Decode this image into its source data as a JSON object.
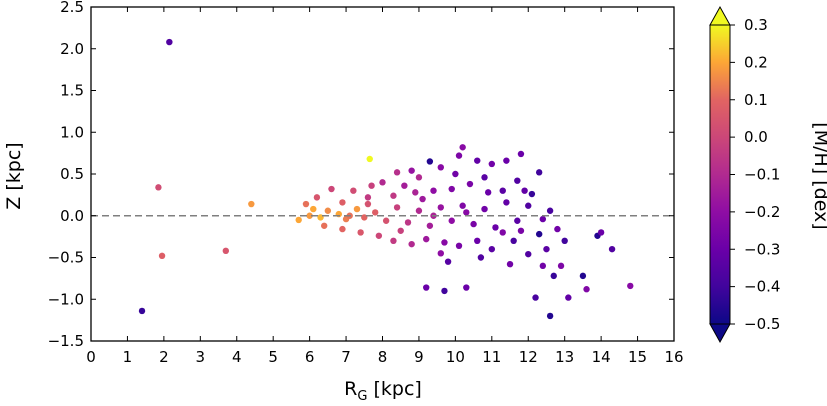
{
  "chart_data": {
    "type": "scatter",
    "xlabel_main": "R",
    "xlabel_sub": "G",
    "xlabel_tail": " [kpc]",
    "ylabel": "Z [kpc]",
    "colorbar_label": "[M/H] [dex]",
    "xlim": [
      0,
      16
    ],
    "ylim": [
      -1.5,
      2.5
    ],
    "clim": [
      -0.5,
      0.3
    ],
    "colormap": "plasma",
    "colorbar_extend": "both",
    "x_ticks": [
      "0",
      "1",
      "2",
      "3",
      "4",
      "5",
      "6",
      "7",
      "8",
      "9",
      "10",
      "11",
      "12",
      "13",
      "14",
      "15",
      "16"
    ],
    "y_ticks": [
      "−1.5",
      "−1.0",
      "−0.5",
      "0.0",
      "0.5",
      "1.0",
      "1.5",
      "2.0",
      "2.5"
    ],
    "c_ticks": [
      "−0.5",
      "−0.4",
      "−0.3",
      "−0.2",
      "−0.1",
      "0.0",
      "0.1",
      "0.2",
      "0.3"
    ],
    "reference_line": {
      "y": 0.0,
      "style": "dashed",
      "color": "#7f7f7f"
    },
    "points": [
      {
        "x": 2.15,
        "y": 2.08,
        "c": -0.36
      },
      {
        "x": 1.85,
        "y": 0.34,
        "c": 0.02
      },
      {
        "x": 1.95,
        "y": -0.48,
        "c": 0.08
      },
      {
        "x": 3.7,
        "y": -0.42,
        "c": 0.05
      },
      {
        "x": 4.4,
        "y": 0.14,
        "c": 0.18
      },
      {
        "x": 1.4,
        "y": -1.14,
        "c": -0.42
      },
      {
        "x": 7.65,
        "y": 0.68,
        "c": 0.3
      },
      {
        "x": 9.3,
        "y": 0.65,
        "c": -0.46
      },
      {
        "x": 10.2,
        "y": 0.82,
        "c": -0.22
      },
      {
        "x": 11.8,
        "y": 0.74,
        "c": -0.3
      },
      {
        "x": 12.6,
        "y": -1.2,
        "c": -0.46
      },
      {
        "x": 14.8,
        "y": -0.84,
        "c": -0.22
      },
      {
        "x": 13.9,
        "y": -0.24,
        "c": -0.46
      },
      {
        "x": 14.3,
        "y": -0.4,
        "c": -0.36
      },
      {
        "x": 9.2,
        "y": -0.86,
        "c": -0.3
      },
      {
        "x": 9.7,
        "y": -0.9,
        "c": -0.4
      },
      {
        "x": 12.2,
        "y": -0.98,
        "c": -0.38
      },
      {
        "x": 13.1,
        "y": -0.98,
        "c": -0.32
      },
      {
        "x": 13.6,
        "y": -0.88,
        "c": -0.24
      },
      {
        "x": 10.3,
        "y": -0.86,
        "c": -0.3
      },
      {
        "x": 12.7,
        "y": -0.72,
        "c": -0.42
      },
      {
        "x": 13.5,
        "y": -0.72,
        "c": -0.46
      },
      {
        "x": 12.4,
        "y": -0.6,
        "c": -0.28
      },
      {
        "x": 9.6,
        "y": -0.45,
        "c": -0.2
      },
      {
        "x": 9.8,
        "y": -0.55,
        "c": -0.35
      },
      {
        "x": 11.5,
        "y": -0.58,
        "c": -0.28
      },
      {
        "x": 12.0,
        "y": -0.46,
        "c": -0.36
      },
      {
        "x": 12.9,
        "y": -0.6,
        "c": -0.25
      },
      {
        "x": 13.0,
        "y": -0.3,
        "c": -0.4
      },
      {
        "x": 14.0,
        "y": -0.2,
        "c": -0.3
      },
      {
        "x": 12.3,
        "y": -0.22,
        "c": -0.46
      },
      {
        "x": 8.4,
        "y": 0.52,
        "c": -0.08
      },
      {
        "x": 8.8,
        "y": 0.54,
        "c": -0.18
      },
      {
        "x": 9.0,
        "y": 0.46,
        "c": -0.1
      },
      {
        "x": 9.6,
        "y": 0.58,
        "c": -0.22
      },
      {
        "x": 10.1,
        "y": 0.72,
        "c": -0.25
      },
      {
        "x": 10.6,
        "y": 0.66,
        "c": -0.32
      },
      {
        "x": 11.0,
        "y": 0.62,
        "c": -0.28
      },
      {
        "x": 11.4,
        "y": 0.66,
        "c": -0.3
      },
      {
        "x": 12.3,
        "y": 0.52,
        "c": -0.4
      },
      {
        "x": 12.1,
        "y": 0.26,
        "c": -0.42
      },
      {
        "x": 11.7,
        "y": 0.42,
        "c": -0.36
      },
      {
        "x": 10.8,
        "y": 0.46,
        "c": -0.34
      },
      {
        "x": 10.4,
        "y": 0.38,
        "c": -0.26
      },
      {
        "x": 9.9,
        "y": 0.32,
        "c": -0.24
      },
      {
        "x": 9.4,
        "y": 0.3,
        "c": -0.2
      },
      {
        "x": 8.9,
        "y": 0.28,
        "c": -0.12
      },
      {
        "x": 8.3,
        "y": 0.24,
        "c": -0.05
      },
      {
        "x": 7.6,
        "y": 0.22,
        "c": -0.04
      },
      {
        "x": 7.2,
        "y": 0.3,
        "c": 0.02
      },
      {
        "x": 6.6,
        "y": 0.32,
        "c": 0.0
      },
      {
        "x": 6.2,
        "y": 0.22,
        "c": 0.05
      },
      {
        "x": 5.9,
        "y": 0.14,
        "c": 0.12
      },
      {
        "x": 5.7,
        "y": -0.05,
        "c": 0.2
      },
      {
        "x": 6.0,
        "y": 0.0,
        "c": 0.18
      },
      {
        "x": 6.3,
        "y": -0.02,
        "c": 0.22
      },
      {
        "x": 6.5,
        "y": 0.06,
        "c": 0.16
      },
      {
        "x": 6.8,
        "y": 0.02,
        "c": 0.2
      },
      {
        "x": 7.0,
        "y": -0.04,
        "c": 0.14
      },
      {
        "x": 7.3,
        "y": 0.08,
        "c": 0.18
      },
      {
        "x": 7.5,
        "y": -0.02,
        "c": 0.1
      },
      {
        "x": 7.8,
        "y": 0.04,
        "c": 0.08
      },
      {
        "x": 8.1,
        "y": -0.06,
        "c": 0.04
      },
      {
        "x": 8.4,
        "y": 0.1,
        "c": -0.02
      },
      {
        "x": 8.7,
        "y": -0.08,
        "c": -0.06
      },
      {
        "x": 9.0,
        "y": 0.06,
        "c": -0.1
      },
      {
        "x": 9.3,
        "y": -0.12,
        "c": -0.14
      },
      {
        "x": 9.6,
        "y": 0.1,
        "c": -0.18
      },
      {
        "x": 9.9,
        "y": -0.06,
        "c": -0.2
      },
      {
        "x": 10.2,
        "y": 0.12,
        "c": -0.24
      },
      {
        "x": 10.5,
        "y": -0.1,
        "c": -0.26
      },
      {
        "x": 10.8,
        "y": 0.08,
        "c": -0.28
      },
      {
        "x": 11.1,
        "y": -0.14,
        "c": -0.3
      },
      {
        "x": 11.4,
        "y": 0.16,
        "c": -0.32
      },
      {
        "x": 11.7,
        "y": -0.06,
        "c": -0.34
      },
      {
        "x": 12.0,
        "y": 0.12,
        "c": -0.36
      },
      {
        "x": 12.4,
        "y": -0.04,
        "c": -0.3
      },
      {
        "x": 12.6,
        "y": 0.06,
        "c": -0.38
      },
      {
        "x": 6.4,
        "y": -0.12,
        "c": 0.12
      },
      {
        "x": 6.9,
        "y": -0.16,
        "c": 0.1
      },
      {
        "x": 7.4,
        "y": -0.2,
        "c": 0.06
      },
      {
        "x": 7.9,
        "y": -0.24,
        "c": 0.0
      },
      {
        "x": 8.3,
        "y": -0.3,
        "c": -0.04
      },
      {
        "x": 8.8,
        "y": -0.34,
        "c": -0.1
      },
      {
        "x": 9.2,
        "y": -0.28,
        "c": -0.16
      },
      {
        "x": 9.7,
        "y": -0.32,
        "c": -0.22
      },
      {
        "x": 10.1,
        "y": -0.36,
        "c": -0.26
      },
      {
        "x": 10.6,
        "y": -0.3,
        "c": -0.3
      },
      {
        "x": 11.0,
        "y": -0.4,
        "c": -0.34
      },
      {
        "x": 11.6,
        "y": -0.3,
        "c": -0.38
      },
      {
        "x": 8.0,
        "y": 0.4,
        "c": -0.1
      },
      {
        "x": 7.7,
        "y": 0.36,
        "c": -0.02
      },
      {
        "x": 6.9,
        "y": 0.16,
        "c": 0.08
      },
      {
        "x": 8.6,
        "y": 0.36,
        "c": -0.14
      },
      {
        "x": 9.1,
        "y": 0.2,
        "c": -0.16
      },
      {
        "x": 10.9,
        "y": 0.28,
        "c": -0.3
      },
      {
        "x": 11.3,
        "y": 0.3,
        "c": -0.34
      },
      {
        "x": 11.9,
        "y": 0.3,
        "c": -0.32
      },
      {
        "x": 10.0,
        "y": 0.5,
        "c": -0.28
      },
      {
        "x": 12.5,
        "y": -0.4,
        "c": -0.34
      },
      {
        "x": 12.8,
        "y": -0.16,
        "c": -0.28
      },
      {
        "x": 11.3,
        "y": -0.2,
        "c": -0.24
      },
      {
        "x": 10.7,
        "y": -0.5,
        "c": -0.36
      },
      {
        "x": 8.5,
        "y": -0.18,
        "c": -0.02
      },
      {
        "x": 9.4,
        "y": 0.0,
        "c": -0.12
      },
      {
        "x": 7.1,
        "y": 0.0,
        "c": 0.12
      },
      {
        "x": 6.1,
        "y": 0.08,
        "c": 0.2
      },
      {
        "x": 7.6,
        "y": 0.14,
        "c": 0.04
      },
      {
        "x": 10.3,
        "y": 0.04,
        "c": -0.22
      },
      {
        "x": 11.8,
        "y": -0.18,
        "c": -0.26
      }
    ]
  }
}
